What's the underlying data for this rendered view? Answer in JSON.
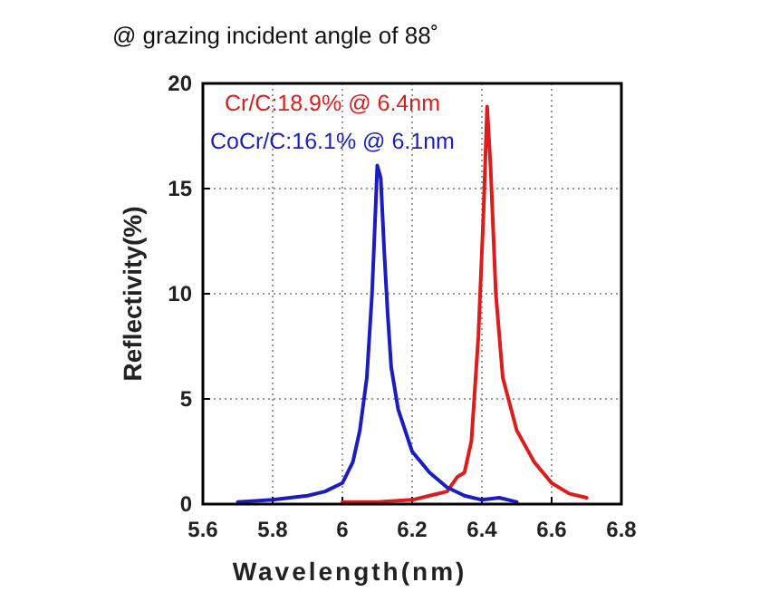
{
  "chart_data": {
    "type": "line",
    "title": "@ grazing incident angle of 88˚",
    "xlabel": "Wavelength(nm)",
    "ylabel": "Reflectivity(%)",
    "xlim": [
      5.6,
      6.8
    ],
    "xticks": [
      5.6,
      5.8,
      6,
      6.2,
      6.4,
      6.6,
      6.8
    ],
    "ylim": [
      0,
      20
    ],
    "yticks": [
      0,
      5,
      10,
      15,
      20
    ],
    "grid": true,
    "legend": "top left",
    "line_style": "solid",
    "marker": "none",
    "series": [
      {
        "name": "Cr/C:18.9% @ 6.4nm",
        "color": "#dd1c1c",
        "x": [
          6.0,
          6.1,
          6.2,
          6.25,
          6.3,
          6.33,
          6.35,
          6.37,
          6.39,
          6.405,
          6.415,
          6.425,
          6.44,
          6.46,
          6.5,
          6.55,
          6.6,
          6.65,
          6.7
        ],
        "values": [
          0.1,
          0.1,
          0.2,
          0.4,
          0.6,
          1.3,
          1.5,
          3,
          8,
          14,
          18.9,
          16,
          10,
          6,
          3.5,
          2,
          1,
          0.5,
          0.3
        ]
      },
      {
        "name": "CoCr/C:16.1% @ 6.1nm",
        "color": "#1c1cc0",
        "x": [
          5.7,
          5.8,
          5.9,
          5.95,
          6.0,
          6.03,
          6.05,
          6.07,
          6.085,
          6.095,
          6.1,
          6.11,
          6.12,
          6.13,
          6.14,
          6.16,
          6.2,
          6.25,
          6.3,
          6.35,
          6.4,
          6.45,
          6.5
        ],
        "values": [
          0.1,
          0.2,
          0.4,
          0.6,
          1.0,
          2.0,
          3.5,
          6,
          10,
          14,
          16.1,
          15.5,
          12,
          9,
          6.5,
          4.5,
          2.5,
          1.5,
          0.8,
          0.4,
          0.2,
          0.3,
          0.1
        ]
      }
    ]
  }
}
